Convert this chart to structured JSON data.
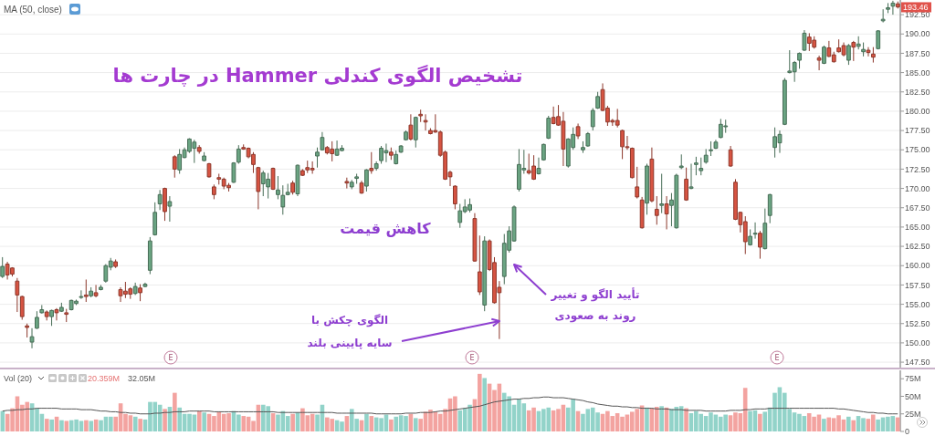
{
  "chart_data": [
    {
      "type": "candlestick",
      "title": "تشخیص الگوی کندلی Hammer در چارت ها",
      "categories": [
        null,
        null,
        null,
        null,
        null,
        null,
        null,
        null,
        null,
        null,
        null,
        null,
        null,
        null,
        null,
        null,
        null,
        null,
        null,
        null,
        null,
        null,
        null,
        null,
        null,
        null,
        null,
        null,
        null,
        null,
        null,
        null,
        null,
        null,
        null,
        null,
        null,
        null,
        null,
        null,
        null,
        null,
        null,
        null,
        null,
        null,
        null,
        null,
        null,
        null,
        null,
        null,
        null,
        null,
        null,
        null,
        null,
        null,
        null,
        null,
        null,
        null,
        null,
        null,
        null,
        null,
        null,
        null,
        null,
        null,
        null,
        null,
        null,
        null,
        null,
        null,
        null,
        null,
        null,
        null,
        null,
        null,
        null,
        null,
        null,
        null,
        null,
        null,
        null,
        null,
        null,
        null,
        null,
        null,
        null,
        null,
        null,
        null,
        null,
        null,
        null,
        null,
        null,
        null,
        null,
        null,
        null,
        null,
        null,
        null,
        null,
        null,
        null,
        null,
        null,
        null,
        null,
        null,
        null,
        null,
        null,
        null,
        null,
        null,
        null,
        null,
        null,
        null,
        null,
        null,
        null,
        null,
        null,
        null,
        null,
        null,
        null,
        null,
        null,
        null,
        null,
        null,
        null,
        null,
        null,
        null,
        null,
        null,
        null,
        null,
        null,
        null,
        null,
        null,
        null,
        null,
        null,
        null,
        null,
        null,
        null,
        null,
        null,
        null,
        null,
        null,
        null,
        null,
        null,
        null,
        null,
        null,
        null,
        null,
        null,
        null,
        null,
        null,
        null,
        null,
        null,
        null,
        null
      ],
      "ohlc": [
        [
          158.6,
          161.1,
          158.4,
          159.9
        ],
        [
          160.2,
          160.5,
          158.2,
          158.8
        ],
        [
          159.7,
          159.8,
          158.6,
          158.9
        ],
        [
          158.0,
          158.4,
          154.0,
          156.2
        ],
        [
          156.0,
          156.1,
          153.0,
          153.4
        ],
        [
          152.2,
          152.5,
          150.7,
          152.0
        ],
        [
          150.1,
          151.9,
          149.3,
          150.8
        ],
        [
          151.9,
          154.1,
          151.8,
          153.3
        ],
        [
          153.9,
          154.9,
          153.8,
          154.3
        ],
        [
          154.0,
          154.2,
          152.9,
          153.4
        ],
        [
          153.4,
          154.3,
          152.2,
          154.2
        ],
        [
          154.3,
          154.5,
          152.9,
          153.9
        ],
        [
          154.1,
          155.2,
          154.0,
          154.6
        ],
        [
          153.9,
          154.4,
          152.7,
          153.7
        ],
        [
          154.3,
          155.6,
          154.2,
          155.5
        ],
        [
          155.1,
          155.6,
          154.9,
          155.4
        ],
        [
          155.9,
          156.8,
          155.7,
          156.0
        ],
        [
          156.2,
          158.2,
          155.3,
          156.0
        ],
        [
          156.1,
          157.2,
          155.9,
          156.7
        ],
        [
          156.5,
          157.5,
          155.9,
          156.1
        ],
        [
          156.9,
          157.5,
          156.8,
          157.2
        ],
        [
          158.0,
          160.2,
          157.8,
          160.0
        ],
        [
          159.8,
          161.0,
          159.4,
          160.6
        ],
        [
          160.5,
          160.8,
          159.7,
          159.9
        ],
        [
          156.9,
          157.2,
          155.3,
          156.1
        ],
        [
          156.7,
          157.9,
          155.8,
          156.3
        ],
        [
          157.0,
          157.2,
          155.7,
          156.3
        ],
        [
          156.4,
          157.8,
          156.2,
          157.3
        ],
        [
          157.1,
          157.6,
          155.4,
          156.5
        ],
        [
          157.3,
          157.8,
          157.2,
          157.6
        ],
        [
          159.4,
          163.7,
          158.9,
          163.2
        ],
        [
          164.0,
          168.2,
          163.9,
          166.9
        ],
        [
          168.0,
          169.8,
          167.2,
          169.2
        ],
        [
          170.0,
          170.1,
          165.8,
          167.0
        ],
        [
          167.7,
          169.0,
          165.7,
          168.3
        ],
        [
          174.1,
          174.3,
          171.4,
          172.5
        ],
        [
          172.4,
          175.1,
          171.9,
          174.4
        ],
        [
          174.0,
          175.3,
          173.9,
          175.0
        ],
        [
          174.8,
          176.5,
          174.6,
          176.4
        ],
        [
          175.2,
          176.3,
          173.3,
          176.0
        ],
        [
          175.3,
          175.6,
          174.5,
          174.8
        ],
        [
          173.6,
          174.7,
          173.5,
          174.2
        ],
        [
          173.2,
          173.3,
          171.4,
          171.5
        ],
        [
          170.2,
          170.5,
          168.6,
          169.2
        ],
        [
          171.4,
          171.9,
          170.5,
          171.2
        ],
        [
          171.2,
          171.4,
          169.9,
          170.3
        ],
        [
          170.4,
          170.7,
          169.6,
          170.1
        ],
        [
          170.8,
          173.4,
          170.7,
          173.3
        ],
        [
          173.4,
          175.6,
          173.2,
          175.1
        ],
        [
          175.3,
          175.7,
          175.0,
          175.1
        ],
        [
          175.2,
          175.3,
          173.9,
          174.1
        ],
        [
          174.4,
          174.7,
          172.0,
          173.1
        ],
        [
          172.7,
          172.8,
          167.3,
          169.6
        ],
        [
          170.6,
          172.3,
          169.0,
          172.0
        ],
        [
          170.2,
          172.0,
          168.7,
          171.2
        ],
        [
          172.6,
          172.7,
          169.8,
          169.9
        ],
        [
          169.2,
          171.6,
          168.6,
          169.8
        ],
        [
          167.6,
          170.4,
          166.6,
          169.1
        ],
        [
          169.2,
          170.6,
          169.1,
          169.5
        ],
        [
          170.7,
          171.0,
          169.2,
          169.5
        ],
        [
          169.3,
          173.1,
          169.0,
          173.0
        ],
        [
          172.3,
          172.5,
          171.6,
          171.7
        ],
        [
          172.7,
          173.6,
          172.0,
          172.4
        ],
        [
          172.6,
          173.5,
          171.9,
          172.4
        ],
        [
          174.2,
          175.3,
          172.7,
          174.7
        ],
        [
          175.0,
          177.3,
          174.9,
          176.6
        ],
        [
          175.3,
          175.5,
          174.4,
          174.6
        ],
        [
          175.1,
          176.1,
          173.5,
          174.5
        ],
        [
          174.3,
          176.2,
          174.2,
          175.1
        ],
        [
          174.9,
          175.6,
          174.8,
          175.2
        ],
        [
          170.9,
          171.4,
          170.0,
          170.7
        ],
        [
          170.2,
          171.1,
          169.9,
          170.8
        ],
        [
          171.3,
          171.9,
          170.6,
          171.5
        ],
        [
          170.7,
          171.0,
          169.3,
          169.4
        ],
        [
          170.3,
          172.5,
          169.6,
          172.4
        ],
        [
          172.6,
          174.7,
          171.9,
          172.3
        ],
        [
          172.6,
          173.5,
          172.3,
          173.2
        ],
        [
          173.6,
          175.5,
          173.2,
          175.2
        ],
        [
          174.6,
          175.8,
          173.4,
          174.9
        ],
        [
          174.7,
          175.3,
          173.7,
          174.3
        ],
        [
          173.2,
          174.9,
          173.1,
          174.4
        ],
        [
          174.7,
          175.6,
          174.6,
          175.5
        ],
        [
          176.3,
          177.5,
          176.2,
          177.3
        ],
        [
          178.2,
          179.6,
          176.2,
          176.4
        ],
        [
          176.3,
          179.3,
          175.3,
          179.2
        ],
        [
          179.6,
          180.2,
          178.6,
          179.4
        ],
        [
          178.8,
          179.6,
          177.5,
          178.6
        ],
        [
          177.5,
          177.8,
          177.0,
          177.1
        ],
        [
          177.5,
          179.6,
          177.2,
          177.3
        ],
        [
          177.3,
          177.5,
          174.1,
          174.3
        ],
        [
          174.7,
          174.9,
          171.1,
          171.2
        ],
        [
          172.1,
          172.3,
          170.3,
          171.5
        ],
        [
          170.3,
          170.4,
          167.3,
          168.0
        ],
        [
          165.6,
          168.0,
          164.9,
          167.1
        ],
        [
          167.0,
          168.6,
          166.8,
          167.6
        ],
        [
          167.2,
          168.7,
          166.9,
          167.9
        ],
        [
          166.1,
          166.8,
          160.5,
          160.6
        ],
        [
          159.2,
          163.9,
          156.2,
          156.6
        ],
        [
          154.9,
          163.8,
          154.1,
          163.2
        ],
        [
          163.2,
          163.4,
          159.3,
          159.5
        ],
        [
          160.4,
          161.1,
          155.1,
          155.2
        ],
        [
          157.2,
          158.0,
          150.5,
          156.5
        ],
        [
          158.6,
          164.1,
          157.6,
          162.9
        ],
        [
          162.0,
          165.1,
          161.7,
          164.5
        ],
        [
          163.2,
          167.8,
          163.1,
          167.6
        ],
        [
          169.9,
          175.1,
          169.6,
          173.1
        ],
        [
          172.4,
          175.0,
          171.9,
          172.6
        ],
        [
          172.3,
          174.5,
          171.8,
          172.0
        ],
        [
          172.9,
          174.3,
          171.1,
          171.2
        ],
        [
          171.9,
          174.0,
          171.8,
          172.6
        ],
        [
          173.7,
          175.8,
          173.6,
          175.7
        ],
        [
          176.5,
          179.4,
          176.4,
          179.1
        ],
        [
          179.2,
          180.6,
          178.3,
          178.4
        ],
        [
          179.3,
          180.8,
          178.1,
          178.2
        ],
        [
          178.7,
          179.9,
          172.9,
          175.1
        ],
        [
          172.9,
          176.5,
          172.7,
          176.4
        ],
        [
          175.3,
          177.9,
          175.0,
          177.0
        ],
        [
          178.0,
          178.4,
          176.4,
          176.8
        ],
        [
          175.0,
          176.1,
          174.6,
          175.3
        ],
        [
          175.5,
          177.3,
          175.4,
          177.1
        ],
        [
          178.0,
          180.4,
          177.5,
          180.1
        ],
        [
          180.4,
          182.5,
          180.3,
          181.9
        ],
        [
          182.8,
          183.6,
          180.0,
          180.1
        ],
        [
          180.4,
          180.7,
          178.1,
          178.6
        ],
        [
          178.8,
          179.0,
          178.1,
          178.6
        ],
        [
          178.8,
          180.3,
          177.9,
          178.2
        ],
        [
          177.5,
          177.6,
          173.8,
          175.4
        ],
        [
          175.4,
          176.8,
          175.0,
          175.3
        ],
        [
          175.2,
          175.3,
          171.3,
          171.4
        ],
        [
          170.2,
          172.8,
          168.7,
          168.9
        ],
        [
          168.5,
          168.9,
          164.8,
          164.9
        ],
        [
          168.1,
          173.2,
          166.6,
          172.9
        ],
        [
          173.8,
          175.3,
          168.2,
          168.4
        ],
        [
          167.3,
          169.0,
          165.3,
          166.5
        ],
        [
          167.8,
          171.9,
          166.8,
          168.0
        ],
        [
          168.0,
          169.0,
          164.7,
          166.7
        ],
        [
          167.8,
          169.4,
          165.1,
          168.5
        ],
        [
          164.9,
          171.9,
          164.8,
          171.7
        ],
        [
          172.7,
          174.4,
          172.5,
          172.9
        ],
        [
          171.2,
          172.7,
          168.4,
          168.5
        ],
        [
          170.0,
          173.2,
          169.9,
          170.2
        ],
        [
          173.1,
          174.1,
          171.7,
          173.3
        ],
        [
          172.3,
          174.0,
          171.7,
          172.6
        ],
        [
          173.4,
          175.1,
          173.2,
          174.3
        ],
        [
          174.9,
          176.1,
          174.2,
          175.0
        ],
        [
          175.2,
          176.3,
          175.1,
          176.0
        ],
        [
          176.6,
          179.0,
          176.5,
          178.3
        ],
        [
          178.0,
          178.9,
          177.2,
          178.1
        ],
        [
          175.0,
          175.5,
          172.8,
          172.9
        ],
        [
          170.8,
          171.2,
          165.9,
          166.0
        ],
        [
          166.9,
          167.0,
          164.3,
          165.3
        ],
        [
          165.7,
          166.4,
          161.5,
          163.1
        ],
        [
          162.7,
          164.7,
          162.6,
          163.8
        ],
        [
          164.1,
          165.6,
          163.5,
          164.2
        ],
        [
          164.2,
          164.5,
          160.9,
          162.4
        ],
        [
          162.2,
          167.4,
          162.1,
          165.5
        ],
        [
          166.5,
          169.3,
          165.5,
          169.2
        ],
        [
          175.3,
          177.9,
          174.0,
          176.7
        ],
        [
          175.9,
          177.5,
          174.6,
          177.0
        ],
        [
          178.3,
          184.3,
          178.2,
          184.0
        ],
        [
          185.0,
          187.9,
          184.9,
          185.2
        ],
        [
          185.1,
          186.5,
          183.8,
          186.3
        ],
        [
          186.6,
          187.6,
          185.5,
          187.5
        ],
        [
          187.9,
          190.5,
          187.8,
          190.1
        ],
        [
          189.6,
          190.1,
          187.8,
          188.8
        ],
        [
          189.2,
          189.7,
          188.1,
          188.3
        ],
        [
          186.9,
          187.2,
          185.3,
          186.6
        ],
        [
          186.2,
          188.5,
          186.1,
          188.3
        ],
        [
          188.2,
          189.1,
          187.0,
          187.1
        ],
        [
          187.3,
          187.7,
          186.3,
          186.4
        ],
        [
          188.2,
          189.3,
          187.6,
          187.7
        ],
        [
          188.5,
          188.9,
          187.1,
          187.3
        ],
        [
          186.6,
          188.7,
          186.0,
          188.5
        ],
        [
          188.9,
          189.1,
          186.5,
          188.3
        ],
        [
          188.4,
          189.7,
          188.0,
          188.7
        ],
        [
          187.7,
          188.9,
          187.1,
          188.0
        ],
        [
          187.9,
          188.3,
          187.1,
          187.6
        ],
        [
          187.4,
          188.3,
          186.3,
          187.0
        ],
        [
          188.1,
          190.5,
          188.0,
          190.4
        ],
        [
          191.7,
          193.2,
          191.5,
          191.9
        ],
        [
          193.2,
          194.0,
          192.7,
          193.4
        ],
        [
          193.6,
          194.3,
          192.5,
          194.0
        ],
        [
          193.9,
          194.2,
          193.3,
          193.5
        ]
      ],
      "colors": [
        "#6ba583",
        "#d75442",
        "#d75442",
        "#d75442",
        "#d75442",
        "#d75442",
        "#6ba583",
        "#6ba583",
        "#6ba583",
        "#d75442",
        "#6ba583",
        "#d75442",
        "#6ba583",
        "#d75442",
        "#6ba583",
        "#6ba583",
        "#6ba583",
        "#d75442",
        "#6ba583",
        "#d75442",
        "#6ba583",
        "#6ba583",
        "#6ba583",
        "#d75442",
        "#d75442",
        "#d75442",
        "#d75442",
        "#6ba583",
        "#d75442",
        "#6ba583",
        "#6ba583",
        "#6ba583",
        "#6ba583",
        "#d75442",
        "#6ba583",
        "#d75442",
        "#6ba583",
        "#6ba583",
        "#6ba583",
        "#6ba583",
        "#d75442",
        "#6ba583",
        "#d75442",
        "#d75442",
        "#d75442",
        "#d75442",
        "#d75442",
        "#6ba583",
        "#6ba583",
        "#d75442",
        "#d75442",
        "#d75442",
        "#d75442",
        "#6ba583",
        "#6ba583",
        "#d75442",
        "#6ba583",
        "#6ba583",
        "#6ba583",
        "#d75442",
        "#6ba583",
        "#d75442",
        "#d75442",
        "#d75442",
        "#6ba583",
        "#6ba583",
        "#d75442",
        "#d75442",
        "#6ba583",
        "#6ba583",
        "#d75442",
        "#6ba583",
        "#6ba583",
        "#d75442",
        "#6ba583",
        "#d75442",
        "#6ba583",
        "#6ba583",
        "#6ba583",
        "#d75442",
        "#6ba583",
        "#6ba583",
        "#6ba583",
        "#d75442",
        "#6ba583",
        "#d75442",
        "#d75442",
        "#d75442",
        "#d75442",
        "#d75442",
        "#d75442",
        "#d75442",
        "#d75442",
        "#6ba583",
        "#6ba583",
        "#6ba583",
        "#d75442",
        "#d75442",
        "#6ba583",
        "#d75442",
        "#d75442",
        "#d75442",
        "#6ba583",
        "#6ba583",
        "#6ba583",
        "#6ba583",
        "#6ba583",
        "#d75442",
        "#d75442",
        "#6ba583",
        "#6ba583",
        "#6ba583",
        "#d75442",
        "#d75442",
        "#d75442",
        "#6ba583",
        "#6ba583",
        "#d75442",
        "#6ba583",
        "#6ba583",
        "#6ba583",
        "#6ba583",
        "#d75442",
        "#d75442",
        "#d75442",
        "#d75442",
        "#d75442",
        "#d75442",
        "#d75442",
        "#d75442",
        "#d75442",
        "#6ba583",
        "#d75442",
        "#d75442",
        "#6ba583",
        "#d75442",
        "#6ba583",
        "#6ba583",
        "#6ba583",
        "#d75442",
        "#6ba583",
        "#6ba583",
        "#6ba583",
        "#6ba583",
        "#6ba583",
        "#6ba583",
        "#6ba583",
        "#6ba583",
        "#d75442",
        "#d75442",
        "#d75442",
        "#d75442",
        "#6ba583",
        "#6ba583",
        "#d75442",
        "#6ba583",
        "#6ba583",
        "#6ba583",
        "#6ba583",
        "#6ba583",
        "#6ba583",
        "#6ba583",
        "#6ba583",
        "#6ba583",
        "#d75442",
        "#d75442",
        "#d75442",
        "#6ba583",
        "#d75442",
        "#d75442",
        "#d75442",
        "#d75442",
        "#6ba583",
        "#d75442",
        "#6ba583",
        "#6ba583",
        "#d75442",
        "#d75442",
        "#6ba583",
        "#6ba583",
        "#6ba583",
        "#6ba583",
        "#d75442"
      ],
      "ylim": [
        146.8,
        194.4
      ],
      "yticks": [
        {
          "value": 147.5,
          "label": "147.50"
        },
        {
          "value": 150,
          "label": "150.00"
        },
        {
          "value": 152.5,
          "label": "152.50"
        },
        {
          "value": 155,
          "label": "155.00"
        },
        {
          "value": 157.5,
          "label": "157.50"
        },
        {
          "value": 160,
          "label": "160.00"
        },
        {
          "value": 162.5,
          "label": "162.50"
        },
        {
          "value": 165,
          "label": "165.00"
        },
        {
          "value": 167.5,
          "label": "167.50"
        },
        {
          "value": 170,
          "label": "170.00"
        },
        {
          "value": 172.5,
          "label": "172.50"
        },
        {
          "value": 175,
          "label": "175.00"
        },
        {
          "value": 177.5,
          "label": "177.50"
        },
        {
          "value": 180,
          "label": "180.00"
        },
        {
          "value": 182.5,
          "label": "182.50"
        },
        {
          "value": 185,
          "label": "185.00"
        },
        {
          "value": 187.5,
          "label": "187.50"
        },
        {
          "value": 190,
          "label": "190.00"
        },
        {
          "value": 192.5,
          "label": "192.50"
        }
      ],
      "grid": "y",
      "tick_labels": "y",
      "annotations": [
        "MA (50, close)",
        "کاهش قیمت",
        "الگوی چکش با\nسایه پایینی بلند",
        "تأیید الگو و تغییر\nروند به صعودی",
        "E",
        "E",
        "E",
        {
          "text": "193.46",
          "y": 193.46
        }
      ]
    },
    {
      "type": "bar",
      "categories": [
        null,
        null,
        null,
        null,
        null,
        null,
        null,
        null,
        null,
        null,
        null,
        null,
        null,
        null,
        null,
        null,
        null,
        null,
        null,
        null,
        null,
        null,
        null,
        null,
        null,
        null,
        null,
        null,
        null,
        null,
        null,
        null,
        null,
        null,
        null,
        null,
        null,
        null,
        null,
        null,
        null,
        null,
        null,
        null,
        null,
        null,
        null,
        null,
        null,
        null,
        null,
        null,
        null,
        null,
        null,
        null,
        null,
        null,
        null,
        null,
        null,
        null,
        null,
        null,
        null,
        null,
        null,
        null,
        null,
        null,
        null,
        null,
        null,
        null,
        null,
        null,
        null,
        null,
        null,
        null,
        null,
        null,
        null,
        null,
        null,
        null,
        null,
        null,
        null,
        null,
        null,
        null,
        null,
        null,
        null,
        null,
        null,
        null,
        null,
        null,
        null,
        null,
        null,
        null,
        null,
        null,
        null,
        null,
        null,
        null,
        null,
        null,
        null,
        null,
        null,
        null,
        null,
        null,
        null,
        null,
        null,
        null,
        null,
        null,
        null,
        null,
        null,
        null,
        null,
        null,
        null,
        null,
        null,
        null,
        null,
        null,
        null,
        null,
        null,
        null,
        null,
        null,
        null,
        null,
        null,
        null,
        null,
        null,
        null,
        null,
        null,
        null,
        null,
        null,
        null,
        null,
        null,
        null,
        null,
        null,
        null,
        null,
        null,
        null,
        null,
        null,
        null,
        null,
        null,
        null,
        null,
        null,
        null,
        null,
        null,
        null,
        null,
        null,
        null,
        null,
        null,
        null,
        null
      ],
      "series": [
        {
          "values": [
            29,
            25,
            33,
            50,
            38,
            42,
            40,
            33,
            25,
            18,
            17,
            21,
            16,
            15,
            16,
            17,
            15,
            16,
            15,
            17,
            16,
            21,
            21,
            21,
            40,
            25,
            23,
            21,
            18,
            17,
            42,
            42,
            38,
            32,
            35,
            55,
            34,
            25,
            25,
            24,
            29,
            27,
            25,
            22,
            28,
            25,
            26,
            29,
            24,
            22,
            21,
            15,
            38,
            38,
            36,
            26,
            24,
            29,
            22,
            25,
            27,
            33,
            23,
            25,
            24,
            38,
            20,
            18,
            16,
            14,
            22,
            32,
            18,
            16,
            25,
            22,
            20,
            19,
            24,
            17,
            21,
            23,
            22,
            25,
            19,
            18,
            28,
            31,
            28,
            25,
            32,
            47,
            50,
            30,
            33,
            38,
            46,
            82,
            76,
            68,
            59,
            68,
            55,
            50,
            38,
            46,
            40,
            30,
            34,
            29,
            32,
            34,
            30,
            32,
            38,
            34,
            46,
            29,
            25,
            32,
            34,
            27,
            25,
            29,
            22,
            26,
            21,
            24,
            28,
            32,
            37,
            34,
            33,
            35,
            36,
            34,
            32,
            35,
            36,
            33,
            26,
            29,
            25,
            22,
            27,
            24,
            21,
            24,
            23,
            27,
            26,
            62,
            29,
            30,
            25,
            28,
            34,
            55,
            63,
            55,
            32,
            27,
            25,
            22,
            26,
            21,
            24,
            18,
            20,
            19,
            23,
            17,
            21,
            16,
            22,
            19,
            18,
            24,
            17,
            20,
            21,
            22,
            20
          ],
          "colors": [
            "#92d3c9",
            "#f3a3a0",
            "#f3a3a0",
            "#f3a3a0",
            "#f3a3a0",
            "#f3a3a0",
            "#92d3c9",
            "#92d3c9",
            "#92d3c9",
            "#f3a3a0",
            "#92d3c9",
            "#f3a3a0",
            "#92d3c9",
            "#f3a3a0",
            "#92d3c9",
            "#92d3c9",
            "#92d3c9",
            "#f3a3a0",
            "#92d3c9",
            "#f3a3a0",
            "#92d3c9",
            "#92d3c9",
            "#92d3c9",
            "#f3a3a0",
            "#f3a3a0",
            "#f3a3a0",
            "#f3a3a0",
            "#92d3c9",
            "#f3a3a0",
            "#92d3c9",
            "#92d3c9",
            "#92d3c9",
            "#92d3c9",
            "#f3a3a0",
            "#92d3c9",
            "#f3a3a0",
            "#92d3c9",
            "#92d3c9",
            "#92d3c9",
            "#92d3c9",
            "#f3a3a0",
            "#92d3c9",
            "#f3a3a0",
            "#f3a3a0",
            "#f3a3a0",
            "#f3a3a0",
            "#f3a3a0",
            "#92d3c9",
            "#92d3c9",
            "#f3a3a0",
            "#f3a3a0",
            "#f3a3a0",
            "#f3a3a0",
            "#92d3c9",
            "#92d3c9",
            "#f3a3a0",
            "#92d3c9",
            "#92d3c9",
            "#92d3c9",
            "#f3a3a0",
            "#92d3c9",
            "#f3a3a0",
            "#f3a3a0",
            "#f3a3a0",
            "#92d3c9",
            "#92d3c9",
            "#f3a3a0",
            "#f3a3a0",
            "#92d3c9",
            "#92d3c9",
            "#f3a3a0",
            "#92d3c9",
            "#92d3c9",
            "#f3a3a0",
            "#92d3c9",
            "#f3a3a0",
            "#92d3c9",
            "#92d3c9",
            "#92d3c9",
            "#f3a3a0",
            "#92d3c9",
            "#92d3c9",
            "#92d3c9",
            "#f3a3a0",
            "#92d3c9",
            "#f3a3a0",
            "#f3a3a0",
            "#f3a3a0",
            "#f3a3a0",
            "#f3a3a0",
            "#f3a3a0",
            "#f3a3a0",
            "#f3a3a0",
            "#92d3c9",
            "#92d3c9",
            "#92d3c9",
            "#f3a3a0",
            "#f3a3a0",
            "#92d3c9",
            "#f3a3a0",
            "#f3a3a0",
            "#f3a3a0",
            "#92d3c9",
            "#92d3c9",
            "#92d3c9",
            "#92d3c9",
            "#92d3c9",
            "#f3a3a0",
            "#f3a3a0",
            "#92d3c9",
            "#92d3c9",
            "#92d3c9",
            "#f3a3a0",
            "#f3a3a0",
            "#f3a3a0",
            "#92d3c9",
            "#92d3c9",
            "#f3a3a0",
            "#92d3c9",
            "#92d3c9",
            "#92d3c9",
            "#92d3c9",
            "#f3a3a0",
            "#f3a3a0",
            "#f3a3a0",
            "#f3a3a0",
            "#f3a3a0",
            "#f3a3a0",
            "#f3a3a0",
            "#f3a3a0",
            "#f3a3a0",
            "#92d3c9",
            "#f3a3a0",
            "#f3a3a0",
            "#92d3c9",
            "#f3a3a0",
            "#92d3c9",
            "#92d3c9",
            "#92d3c9",
            "#f3a3a0",
            "#92d3c9",
            "#92d3c9",
            "#92d3c9",
            "#92d3c9",
            "#92d3c9",
            "#92d3c9",
            "#92d3c9",
            "#92d3c9",
            "#f3a3a0",
            "#f3a3a0",
            "#f3a3a0",
            "#f3a3a0",
            "#92d3c9",
            "#92d3c9",
            "#f3a3a0",
            "#92d3c9",
            "#92d3c9",
            "#92d3c9",
            "#92d3c9",
            "#92d3c9",
            "#92d3c9",
            "#92d3c9",
            "#92d3c9",
            "#92d3c9",
            "#f3a3a0",
            "#f3a3a0",
            "#f3a3a0",
            "#92d3c9",
            "#f3a3a0",
            "#f3a3a0",
            "#f3a3a0",
            "#f3a3a0",
            "#92d3c9",
            "#f3a3a0",
            "#92d3c9",
            "#92d3c9",
            "#f3a3a0",
            "#f3a3a0",
            "#92d3c9",
            "#92d3c9",
            "#92d3c9",
            "#92d3c9",
            "#f3a3a0"
          ]
        },
        {
          "type": "line",
          "color": "#555555",
          "values": [
            29,
            30,
            30,
            31,
            31,
            32,
            32,
            33,
            33,
            33,
            33,
            33,
            32,
            32,
            32,
            32,
            31,
            31,
            31,
            30,
            29,
            29,
            28,
            28,
            27,
            27,
            26,
            26,
            25,
            25,
            25,
            26,
            26,
            27,
            27,
            28,
            28,
            28,
            29,
            29,
            29,
            29,
            29,
            28,
            28,
            28,
            28,
            28,
            28,
            28,
            28,
            28,
            28,
            28,
            28,
            28,
            27,
            27,
            27,
            27,
            27,
            27,
            27,
            27,
            27,
            27,
            27,
            27,
            26,
            26,
            26,
            26,
            26,
            26,
            26,
            26,
            25,
            25,
            25,
            25,
            25,
            25,
            26,
            26,
            26,
            27,
            27,
            27,
            28,
            29,
            29,
            30,
            31,
            32,
            33,
            34,
            35,
            36,
            38,
            40,
            42,
            43,
            44,
            45,
            46,
            46,
            47,
            47,
            48,
            48,
            49,
            49,
            48,
            48,
            48,
            47,
            46,
            45,
            44,
            42,
            41,
            39,
            38,
            37,
            36,
            36,
            35,
            35,
            34,
            34,
            33,
            33,
            33,
            32,
            32,
            32,
            31,
            31,
            31,
            30,
            30,
            30,
            30,
            29,
            29,
            29,
            29,
            29,
            30,
            30,
            30,
            31,
            31,
            32,
            32,
            32,
            33,
            33,
            33,
            33,
            33,
            33,
            33,
            33,
            33,
            33,
            33,
            33,
            33,
            33,
            32,
            32,
            31,
            30,
            29,
            28,
            27,
            27,
            26,
            26,
            25,
            25,
            25
          ]
        }
      ],
      "ylim": [
        0,
        87
      ],
      "yticks": [
        0,
        {
          "value": 25,
          "label": "25M"
        },
        {
          "value": 50,
          "label": "50M"
        },
        {
          "value": 75,
          "label": "75M"
        }
      ],
      "tick_labels": "y",
      "annotations": [
        "Vol (20)",
        "20.359M",
        "32.05M"
      ]
    }
  ]
}
